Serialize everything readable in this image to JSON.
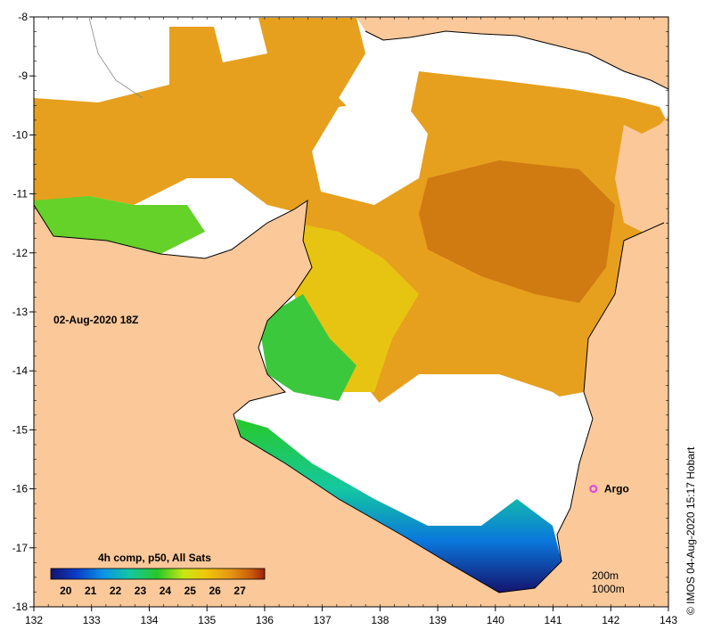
{
  "map": {
    "date_label": "02-Aug-2020 18Z",
    "credit": "© IMOS 04-Aug-2020 15:17 Hobart",
    "x_ticks": [
      "132",
      "133",
      "134",
      "135",
      "136",
      "137",
      "138",
      "139",
      "140",
      "141",
      "142",
      "143"
    ],
    "y_ticks": [
      "-8",
      "-9",
      "-10",
      "-11",
      "-12",
      "-13",
      "-14",
      "-15",
      "-16",
      "-17",
      "-18"
    ],
    "x_range": [
      132,
      143
    ],
    "y_range": [
      -8,
      -18
    ],
    "argo": {
      "label": "Argo",
      "lon": 141.7,
      "lat": -16.0,
      "color": "#e040e0"
    },
    "isobaths": [
      "200m",
      "1000m"
    ],
    "land_color": "#fbc89a",
    "no_data_color": "#ffffff"
  },
  "colorbar": {
    "title": "4h comp, p50, All Sats",
    "ticks": [
      "20",
      "21",
      "22",
      "23",
      "24",
      "25",
      "26",
      "27"
    ],
    "range": [
      19.4,
      28.0
    ],
    "colors": [
      "#14146e",
      "#0a3cc8",
      "#0a96e6",
      "#14c8a0",
      "#28c828",
      "#c8e614",
      "#f0c80a",
      "#e69614",
      "#c85a0a",
      "#a01e0a"
    ]
  }
}
